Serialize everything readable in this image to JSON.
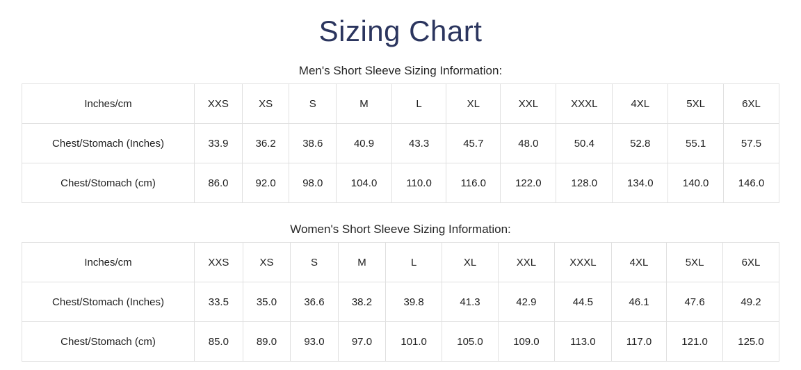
{
  "page": {
    "title": "Sizing Chart"
  },
  "theme": {
    "background": "#ffffff",
    "title_color": "#2b355e",
    "heading_color": "#262626",
    "text_color": "#212121",
    "border_color": "#e0e0e0"
  },
  "tables": [
    {
      "id": "mens-short-sleeve",
      "heading": "Men's Short Sleeve Sizing Information:",
      "columns": [
        "Inches/cm",
        "XXS",
        "XS",
        "S",
        "M",
        "L",
        "XL",
        "XXL",
        "XXXL",
        "4XL",
        "5XL",
        "6XL"
      ],
      "rows": [
        {
          "label": "Chest/Stomach (Inches)",
          "values": [
            "33.9",
            "36.2",
            "38.6",
            "40.9",
            "43.3",
            "45.7",
            "48.0",
            "50.4",
            "52.8",
            "55.1",
            "57.5"
          ]
        },
        {
          "label": "Chest/Stomach (cm)",
          "values": [
            "86.0",
            "92.0",
            "98.0",
            "104.0",
            "110.0",
            "116.0",
            "122.0",
            "128.0",
            "134.0",
            "140.0",
            "146.0"
          ]
        }
      ]
    },
    {
      "id": "womens-short-sleeve",
      "heading": "Women's Short Sleeve Sizing Information:",
      "columns": [
        "Inches/cm",
        "XXS",
        "XS",
        "S",
        "M",
        "L",
        "XL",
        "XXL",
        "XXXL",
        "4XL",
        "5XL",
        "6XL"
      ],
      "rows": [
        {
          "label": "Chest/Stomach (Inches)",
          "values": [
            "33.5",
            "35.0",
            "36.6",
            "38.2",
            "39.8",
            "41.3",
            "42.9",
            "44.5",
            "46.1",
            "47.6",
            "49.2"
          ]
        },
        {
          "label": "Chest/Stomach (cm)",
          "values": [
            "85.0",
            "89.0",
            "93.0",
            "97.0",
            "101.0",
            "105.0",
            "109.0",
            "113.0",
            "117.0",
            "121.0",
            "125.0"
          ]
        }
      ]
    }
  ]
}
